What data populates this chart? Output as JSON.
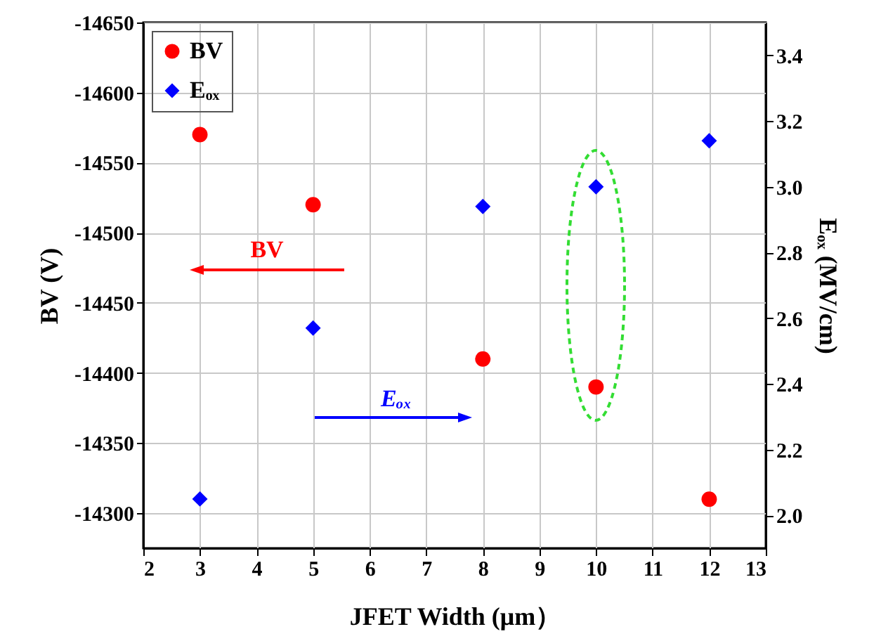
{
  "chart_data": {
    "type": "scatter",
    "xlabel": "JFET Width (μm）",
    "ylabel": "BV (V)",
    "y2label": "Eₒₓ (MV/cm)",
    "x": [
      3,
      5,
      8,
      10,
      12
    ],
    "series": [
      {
        "name": "BV",
        "color": "#ff0000",
        "marker": "circle",
        "values": [
          -14570,
          -14520,
          -14410,
          -14390,
          -14310
        ]
      },
      {
        "name": "Eₒₓ",
        "color": "#0000ff",
        "marker": "diamond",
        "axis": "y2",
        "values": [
          2.05,
          2.57,
          2.94,
          3.0,
          3.14
        ]
      }
    ],
    "xlim": [
      2,
      13
    ],
    "xticks": [
      2,
      3,
      4,
      5,
      6,
      7,
      8,
      9,
      10,
      11,
      12,
      13
    ],
    "ylim": [
      -14275,
      -14650
    ],
    "yticks": [
      -14300,
      -14350,
      -14400,
      -14450,
      -14500,
      -14550,
      -14600,
      -14650
    ],
    "y2lim": [
      1.9,
      3.5
    ],
    "y2ticks": [
      {
        "value": 2,
        "label": "2.0"
      },
      {
        "value": 2.2,
        "label": "2.2"
      },
      {
        "value": 2.4,
        "label": "2.4"
      },
      {
        "value": 2.6,
        "label": "2.6"
      },
      {
        "value": 2.8,
        "label": "2.8"
      },
      {
        "value": 3,
        "label": "3.0"
      },
      {
        "value": 3.2,
        "label": "3.2"
      },
      {
        "value": 3.4,
        "label": "3.4"
      }
    ],
    "annotations": [
      "BV",
      "Eₒₓ"
    ],
    "grid": true,
    "legend": "top left"
  }
}
